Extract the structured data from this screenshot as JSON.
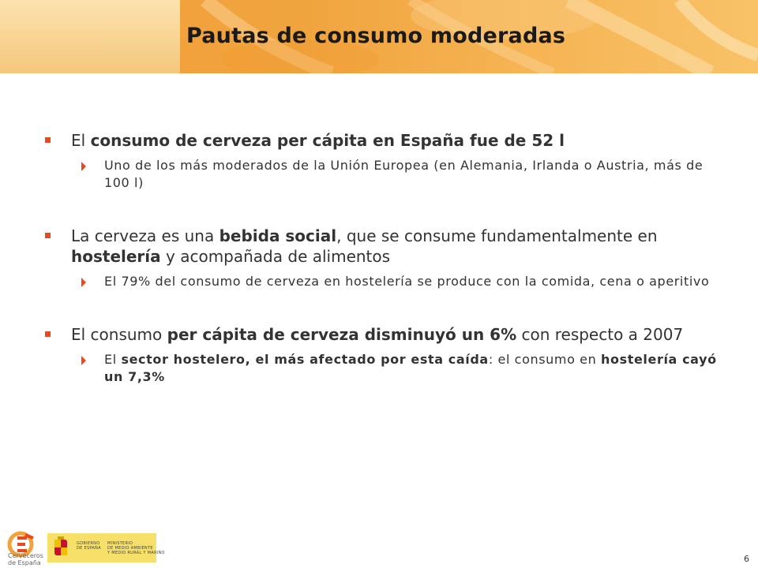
{
  "slide": {
    "title": "Pautas de consumo moderadas",
    "page_number": "6"
  },
  "bullets": [
    {
      "segments": [
        "El ",
        "consumo de cerveza per cápita en España fue de 52 l"
      ],
      "sub": [
        {
          "segments": [
            "Uno de los más moderados de la Unión Europea (en Alemania, Irlanda o Austria, más de 100 l)"
          ]
        }
      ]
    },
    {
      "segments": [
        "La cerveza es una ",
        "bebida social",
        ", que se consume fundamentalmente en ",
        "hostelería",
        " y acompañada de alimentos"
      ],
      "sub": [
        {
          "segments": [
            "El 79% del consumo de cerveza en hostelería se produce con la comida, cena o aperitivo"
          ]
        }
      ]
    },
    {
      "segments": [
        "El consumo ",
        "per cápita de cerveza disminuyó un 6%",
        " con respecto a 2007"
      ],
      "sub": [
        {
          "segments": [
            "El ",
            "sector hostelero, el más afectado por esta caída",
            ": el consumo en ",
            "hostelería cayó un 7,3%"
          ]
        }
      ]
    }
  ],
  "footer": {
    "logo_text_line1": "Cerveceros",
    "logo_text_line2": "de España",
    "gov_label_line1": "GOBIERNO",
    "gov_label_line2": "DE ESPAÑA",
    "ministry_line1": "MINISTERIO",
    "ministry_line2": "DE MEDIO AMBIENTE",
    "ministry_line3": "Y MEDIO RURAL Y MARINO"
  },
  "colors": {
    "accent": "#e8491d",
    "header_orange": "#f2a23c",
    "badge_yellow": "#f7e06a"
  }
}
